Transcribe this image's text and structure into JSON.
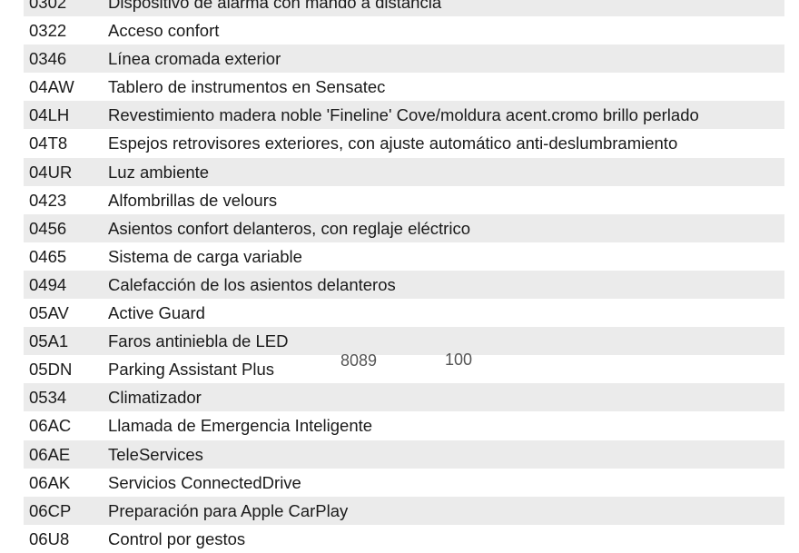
{
  "rows": [
    {
      "code": "0302",
      "desc": "Dispositivo de alarma con mando a distancia"
    },
    {
      "code": "0322",
      "desc": "Acceso confort"
    },
    {
      "code": "0346",
      "desc": "Línea cromada exterior"
    },
    {
      "code": "04AW",
      "desc": "Tablero de instrumentos en Sensatec"
    },
    {
      "code": "04LH",
      "desc": "Revestimiento madera noble 'Fineline' Cove/moldura acent.cromo brillo perlado"
    },
    {
      "code": "04T8",
      "desc": "Espejos retrovisores exteriores, con ajuste automático anti-deslumbramiento"
    },
    {
      "code": "04UR",
      "desc": "Luz ambiente"
    },
    {
      "code": "0423",
      "desc": "Alfombrillas de velours"
    },
    {
      "code": "0456",
      "desc": "Asientos confort delanteros, con reglaje eléctrico"
    },
    {
      "code": "0465",
      "desc": "Sistema de carga variable"
    },
    {
      "code": "0494",
      "desc": "Calefacción de los asientos delanteros"
    },
    {
      "code": "05AV",
      "desc": "Active Guard"
    },
    {
      "code": "05A1",
      "desc": "Faros antiniebla de LED"
    },
    {
      "code": "05DN",
      "desc": "Parking Assistant Plus"
    },
    {
      "code": "0534",
      "desc": "Climatizador"
    },
    {
      "code": "06AC",
      "desc": "Llamada de Emergencia Inteligente"
    },
    {
      "code": "06AE",
      "desc": "TeleServices"
    },
    {
      "code": "06AK",
      "desc": "Servicios ConnectedDrive"
    },
    {
      "code": "06CP",
      "desc": "Preparación para Apple CarPlay"
    },
    {
      "code": "06U8",
      "desc": "Control por gestos"
    }
  ],
  "overlay": {
    "left_number": "8089",
    "right_number": "100"
  },
  "colors": {
    "stripe": "#ebebeb",
    "text": "#1a1a1a",
    "overlay_text": "#555555"
  }
}
